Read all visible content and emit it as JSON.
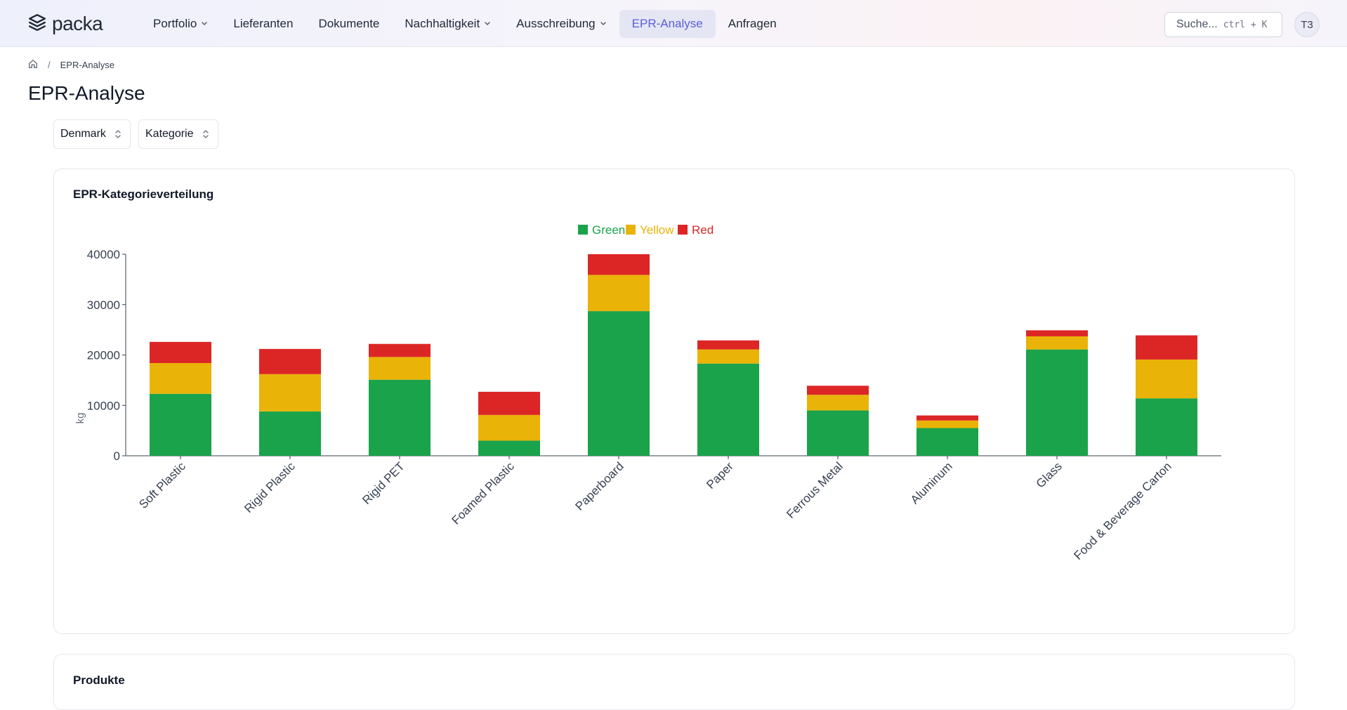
{
  "app": {
    "brand": "packa",
    "nav": [
      {
        "label": "Portfolio",
        "dropdown": true,
        "active": false
      },
      {
        "label": "Lieferanten",
        "dropdown": false,
        "active": false
      },
      {
        "label": "Dokumente",
        "dropdown": false,
        "active": false
      },
      {
        "label": "Nachhaltigkeit",
        "dropdown": true,
        "active": false
      },
      {
        "label": "Ausschreibung",
        "dropdown": true,
        "active": false
      },
      {
        "label": "EPR-Analyse",
        "dropdown": false,
        "active": true
      },
      {
        "label": "Anfragen",
        "dropdown": false,
        "active": false
      }
    ],
    "search": {
      "placeholder": "Suche...",
      "shortcut": "ctrl + K"
    },
    "avatar": "T3"
  },
  "breadcrumb": {
    "separator": "/",
    "current": "EPR-Analyse"
  },
  "page": {
    "title": "EPR-Analyse"
  },
  "filters": {
    "country": "Denmark",
    "category": "Kategorie"
  },
  "chart_card": {
    "title": "EPR-Kategorieverteilung"
  },
  "products_card": {
    "title": "Produkte"
  },
  "colors": {
    "green": "#1aa34a",
    "yellow": "#eab308",
    "red": "#dc2626",
    "accent": "#5b5fd6"
  },
  "chart_data": {
    "type": "bar",
    "stacked": true,
    "title": "",
    "ylabel": "kg",
    "xlabel": "",
    "ylim": [
      0,
      40000
    ],
    "yticks": [
      0,
      10000,
      20000,
      30000,
      40000
    ],
    "legend_position": "top-center",
    "categories": [
      "Soft Plastic",
      "Rigid Plastic",
      "Rigid PET",
      "Foamed Plastic",
      "Paperboard",
      "Paper",
      "Ferrous Metal",
      "Aluminum",
      "Glass",
      "Food & Beverage Carton"
    ],
    "series": [
      {
        "name": "Green",
        "color": "#1aa34a",
        "values": [
          12300,
          8800,
          15100,
          3000,
          28700,
          18300,
          9000,
          5500,
          21100,
          11400
        ]
      },
      {
        "name": "Yellow",
        "color": "#eab308",
        "values": [
          6100,
          7400,
          4500,
          5100,
          7200,
          2800,
          3100,
          1500,
          2600,
          7700
        ]
      },
      {
        "name": "Red",
        "color": "#dc2626",
        "values": [
          4200,
          5000,
          2600,
          4600,
          4100,
          1800,
          1800,
          1000,
          1200,
          4800
        ]
      }
    ]
  }
}
